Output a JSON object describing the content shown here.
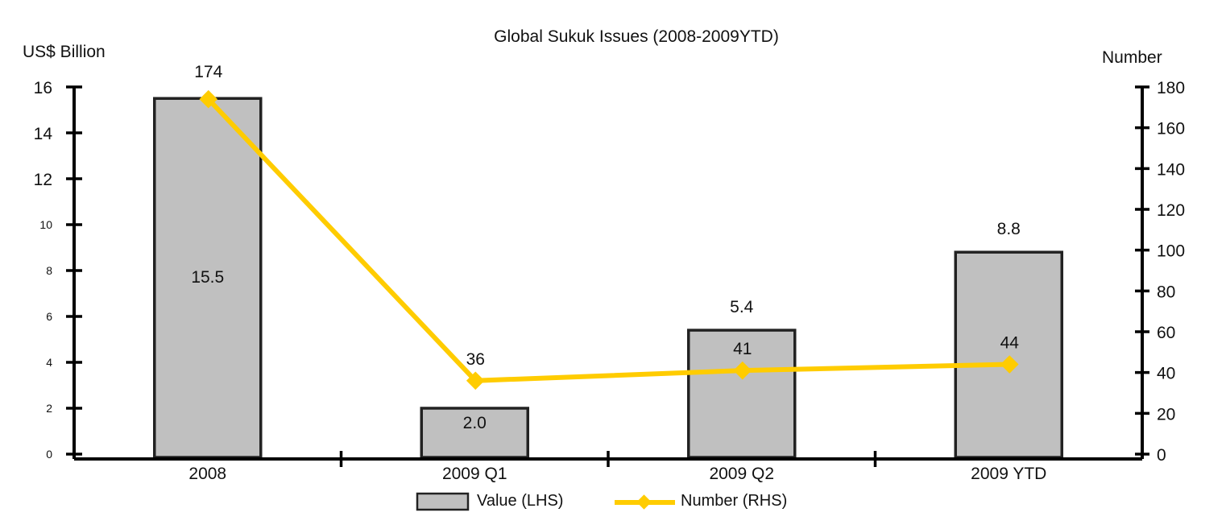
{
  "chart_data": {
    "type": "bar",
    "title": "Global Sukuk Issues (2008-2009YTD)",
    "categories": [
      "2008",
      "2009 Q1",
      "2009 Q2",
      "2009 YTD"
    ],
    "series": [
      {
        "name": "Value (LHS)",
        "type": "bar",
        "axis": "left",
        "values": [
          15.5,
          2.0,
          5.4,
          8.8
        ],
        "labels": [
          "15.5",
          "2.0",
          "5.4",
          "8.8"
        ],
        "color": "#c0c0c0"
      },
      {
        "name": "Number (RHS)",
        "type": "line",
        "axis": "right",
        "values": [
          174,
          36,
          41,
          44
        ],
        "labels": [
          "174",
          "36",
          "41",
          "44"
        ],
        "color": "#ffcc00"
      }
    ],
    "ylabel": "US$ Billion",
    "y2label": "Number",
    "ylim": [
      0,
      16
    ],
    "y2lim": [
      0,
      180
    ],
    "yticks": [
      "0",
      "2",
      "4",
      "6",
      "8",
      "10",
      "12",
      "14",
      "16"
    ],
    "y2ticks": [
      "0",
      "20",
      "40",
      "60",
      "80",
      "100",
      "120",
      "140",
      "160",
      "180"
    ],
    "grid": false,
    "legend": "bottom-center"
  }
}
